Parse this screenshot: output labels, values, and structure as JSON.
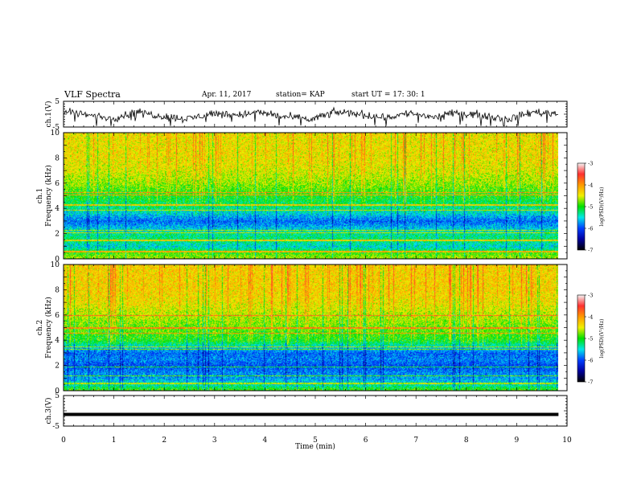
{
  "header": {
    "title": "VLF Spectra",
    "date": "Apr. 11, 2017",
    "station": "station= KAP",
    "start": "start  UT  =   17: 30: 1"
  },
  "colorbar": {
    "label": "log(PSD)(V²/Hz)",
    "ticks": [
      "-3",
      "-4",
      "-5",
      "-6",
      "-7"
    ],
    "colors": [
      "#f4f4f4",
      "#ff3030",
      "#ff9a00",
      "#f0f000",
      "#00e000",
      "#00e8e8",
      "#0040ff",
      "#0000a0",
      "#000000"
    ]
  },
  "chart_data": [
    {
      "type": "line",
      "panel": "ch1-waveform",
      "ylabel": "ch.1(V)",
      "yticks": [
        "5",
        "-5"
      ],
      "ylim": [
        -5,
        5
      ],
      "xlim": [
        0,
        10
      ],
      "x_end": 9.83,
      "y_approx": [
        1.2,
        -0.4,
        -1.6,
        0.9,
        -0.8,
        -1.9,
        0.3,
        -0.2,
        0.6,
        -1.1,
        -2.1,
        0.8,
        0.1,
        -1.4,
        0.4,
        -1.2,
        0.7,
        -0.5,
        -1.9,
        0.9,
        0.2
      ]
    },
    {
      "type": "heatmap",
      "panel": "ch1-spectrogram",
      "ylabel": "ch.1",
      "ylabel2": "Frequency  (kHz)",
      "yticks": [
        "0",
        "2",
        "4",
        "6",
        "8",
        "10"
      ],
      "ylim": [
        0,
        10
      ],
      "xlim": [
        0,
        10
      ],
      "x_end": 9.83,
      "bands_khz": [
        0.6,
        1.5,
        2.1,
        2.3,
        3.9,
        4.3,
        5.1,
        5.3
      ],
      "log_psd_profile": [
        {
          "f": 0.0,
          "v": -4.6
        },
        {
          "f": 0.5,
          "v": -4.9
        },
        {
          "f": 1.0,
          "v": -5.5
        },
        {
          "f": 1.5,
          "v": -5.2
        },
        {
          "f": 2.0,
          "v": -5.3
        },
        {
          "f": 2.5,
          "v": -5.6
        },
        {
          "f": 3.0,
          "v": -5.9
        },
        {
          "f": 3.5,
          "v": -5.6
        },
        {
          "f": 4.0,
          "v": -5.3
        },
        {
          "f": 5.0,
          "v": -5.0
        },
        {
          "f": 6.0,
          "v": -4.7
        },
        {
          "f": 7.0,
          "v": -4.5
        },
        {
          "f": 8.0,
          "v": -4.4
        },
        {
          "f": 9.0,
          "v": -4.4
        },
        {
          "f": 10.0,
          "v": -4.4
        }
      ]
    },
    {
      "type": "heatmap",
      "panel": "ch2-spectrogram",
      "ylabel": "ch.2",
      "ylabel2": "Frequency  (kHz)",
      "yticks": [
        "0",
        "2",
        "4",
        "6",
        "8",
        "10"
      ],
      "ylim": [
        0,
        10
      ],
      "xlim": [
        0,
        10
      ],
      "x_end": 9.83,
      "bands_khz": [
        0.6,
        1.2,
        1.9,
        3.3,
        3.5,
        4.6,
        5.0,
        6.0
      ],
      "log_psd_profile": [
        {
          "f": 0.0,
          "v": -4.8
        },
        {
          "f": 0.5,
          "v": -5.4
        },
        {
          "f": 1.0,
          "v": -5.7
        },
        {
          "f": 1.5,
          "v": -5.8
        },
        {
          "f": 2.0,
          "v": -6.0
        },
        {
          "f": 2.5,
          "v": -5.8
        },
        {
          "f": 3.0,
          "v": -5.9
        },
        {
          "f": 3.5,
          "v": -5.5
        },
        {
          "f": 4.0,
          "v": -5.0
        },
        {
          "f": 5.0,
          "v": -4.8
        },
        {
          "f": 6.0,
          "v": -4.6
        },
        {
          "f": 7.0,
          "v": -4.4
        },
        {
          "f": 8.0,
          "v": -4.3
        },
        {
          "f": 9.0,
          "v": -4.3
        },
        {
          "f": 10.0,
          "v": -4.3
        }
      ]
    },
    {
      "type": "line",
      "panel": "ch3-waveform",
      "ylabel": "ch.3(V)",
      "yticks": [
        "5",
        "-5"
      ],
      "ylim": [
        -5,
        5
      ],
      "xlim": [
        0,
        10
      ],
      "x_end": 9.83,
      "y_approx": [
        -1.2,
        -1.2
      ]
    }
  ],
  "xaxis": {
    "label": "Time  (min)",
    "ticks": [
      "0",
      "1",
      "2",
      "3",
      "4",
      "5",
      "6",
      "7",
      "8",
      "9",
      "10"
    ]
  }
}
